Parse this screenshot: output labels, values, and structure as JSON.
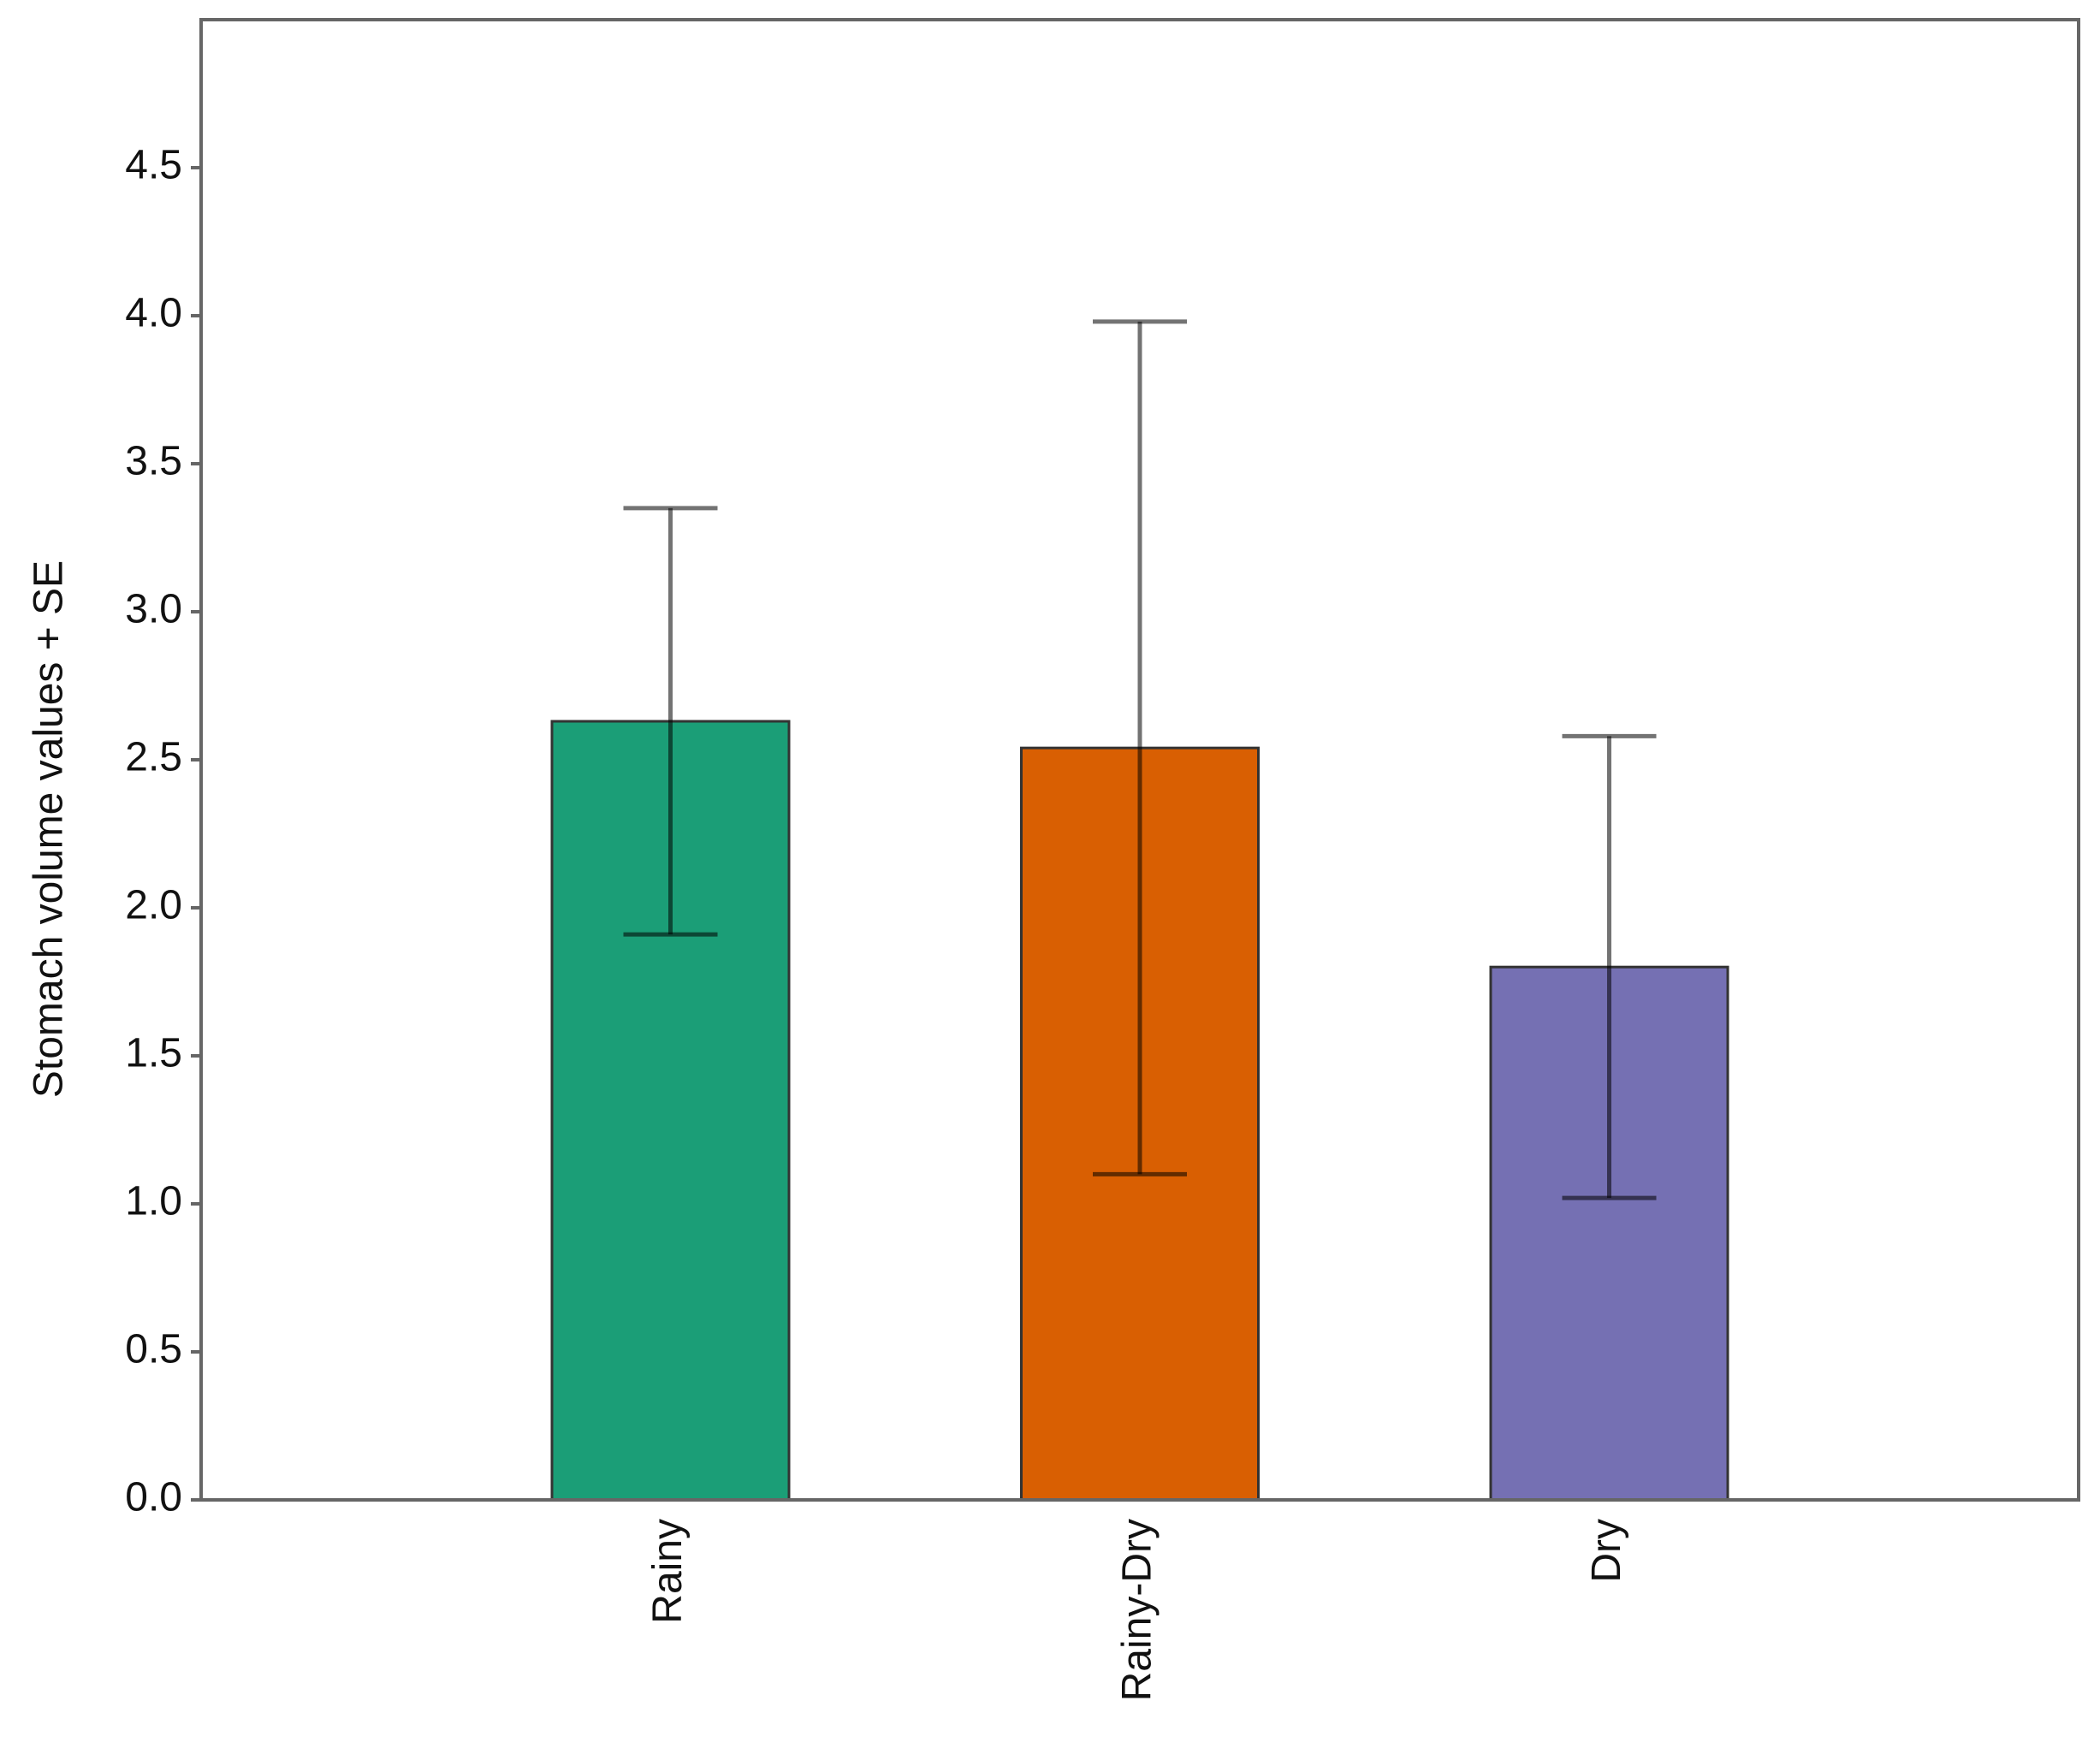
{
  "chart_data": {
    "type": "bar",
    "y_label": "Stomach volume values + SE",
    "categories": [
      "Rainy",
      "Rainy-Dry",
      "Dry"
    ],
    "values": [
      2.63,
      2.54,
      1.8
    ],
    "errors": [
      0.72,
      1.44,
      0.78
    ],
    "colors": [
      "#1b9e77",
      "#d95f02",
      "#7570b3"
    ],
    "ylim": [
      0,
      5
    ],
    "yticks": [
      {
        "value": 0,
        "label": "0.0"
      },
      0.5,
      {
        "value": 1,
        "label": "1.0"
      },
      1.5,
      {
        "value": 2,
        "label": "2.0"
      },
      2.5,
      {
        "value": 3,
        "label": "3.0"
      },
      3.5,
      {
        "value": 4,
        "label": "4.0"
      },
      4.5
    ],
    "grid": false
  }
}
